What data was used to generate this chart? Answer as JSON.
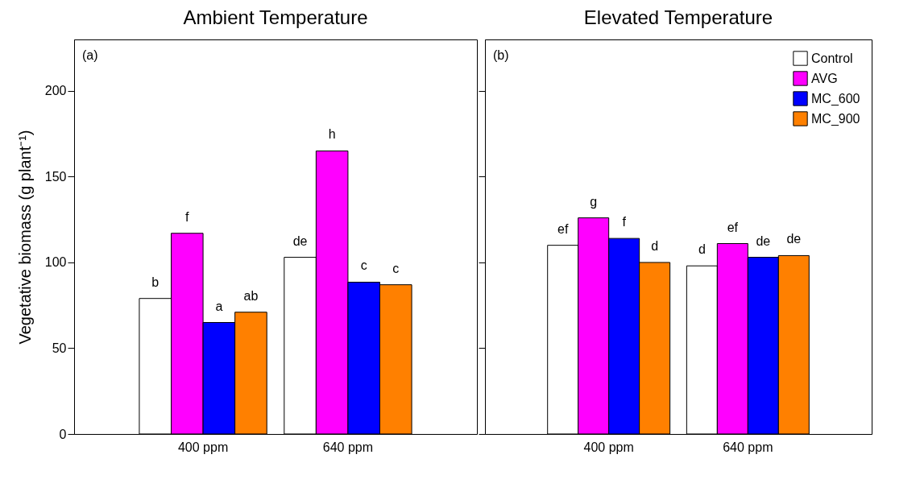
{
  "chart_data": [
    {
      "type": "bar",
      "title": "Ambient Temperature",
      "ylabel": "Vegetative biomass (g plant⁻¹)",
      "categories": [
        "400 ppm",
        "640 ppm"
      ],
      "ylim": [
        0,
        230
      ],
      "yticks": [
        0,
        50,
        100,
        150,
        200
      ],
      "annotations": [
        "(a)"
      ],
      "series": [
        {
          "color": "#ffffff",
          "values": [
            79,
            103
          ],
          "value_labels": [
            "b",
            "de"
          ]
        },
        {
          "color": "#ff00ff",
          "values": [
            117,
            165
          ],
          "value_labels": [
            "f",
            "h"
          ]
        },
        {
          "color": "#0000ff",
          "values": [
            65,
            88.5
          ],
          "value_labels": [
            "a",
            "c"
          ]
        },
        {
          "color": "#ff8000",
          "values": [
            71,
            87
          ],
          "value_labels": [
            "ab",
            "c"
          ]
        }
      ]
    },
    {
      "type": "bar",
      "title": "Elevated Temperature",
      "categories": [
        "400 ppm",
        "640 ppm"
      ],
      "ylim": [
        0,
        230
      ],
      "yticks": [
        0,
        50,
        100,
        150,
        200
      ],
      "tick_labels": "x",
      "legend": "top right",
      "annotations": [
        "(b)"
      ],
      "series": [
        {
          "name": "Control",
          "color": "#ffffff",
          "values": [
            110,
            98
          ],
          "value_labels": [
            "ef",
            "d"
          ]
        },
        {
          "name": "AVG",
          "color": "#ff00ff",
          "values": [
            126,
            111
          ],
          "value_labels": [
            "g",
            "ef"
          ]
        },
        {
          "name": "MC_600",
          "color": "#0000ff",
          "values": [
            114,
            103
          ],
          "value_labels": [
            "f",
            "de"
          ]
        },
        {
          "name": "MC_900",
          "color": "#ff8000",
          "values": [
            100,
            104
          ],
          "value_labels": [
            "d",
            "de"
          ]
        }
      ]
    }
  ]
}
